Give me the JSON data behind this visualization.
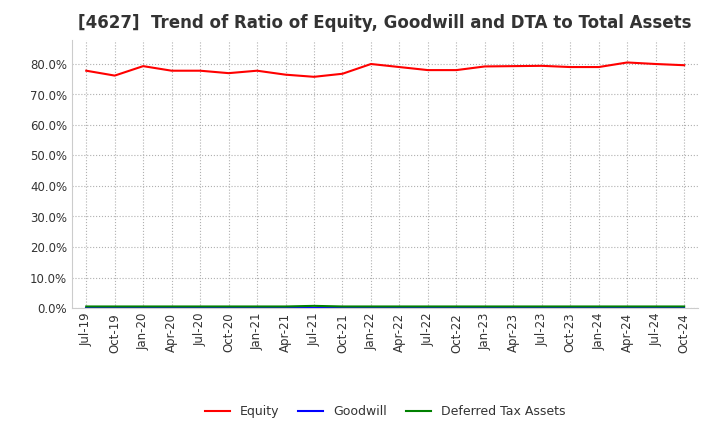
{
  "title": "[4627]  Trend of Ratio of Equity, Goodwill and DTA to Total Assets",
  "x_labels": [
    "Jul-19",
    "Oct-19",
    "Jan-20",
    "Apr-20",
    "Jul-20",
    "Oct-20",
    "Jan-21",
    "Apr-21",
    "Jul-21",
    "Oct-21",
    "Jan-22",
    "Apr-22",
    "Jul-22",
    "Oct-22",
    "Jan-23",
    "Apr-23",
    "Jul-23",
    "Oct-23",
    "Jan-24",
    "Apr-24",
    "Jul-24",
    "Oct-24"
  ],
  "equity": [
    0.778,
    0.762,
    0.793,
    0.778,
    0.778,
    0.77,
    0.778,
    0.765,
    0.758,
    0.768,
    0.8,
    0.79,
    0.78,
    0.78,
    0.792,
    0.793,
    0.794,
    0.79,
    0.79,
    0.805,
    0.8,
    0.796
  ],
  "goodwill": [
    0.0,
    0.0,
    0.0,
    0.0,
    0.0,
    0.0,
    0.0,
    0.0,
    0.0,
    0.0,
    0.0,
    0.0,
    0.0,
    0.0,
    0.0,
    0.0,
    0.0,
    0.0,
    0.0,
    0.0,
    0.0,
    0.0
  ],
  "dta": [
    0.005,
    0.005,
    0.005,
    0.005,
    0.005,
    0.005,
    0.005,
    0.005,
    0.007,
    0.005,
    0.005,
    0.005,
    0.005,
    0.005,
    0.005,
    0.005,
    0.005,
    0.005,
    0.005,
    0.005,
    0.005,
    0.005
  ],
  "equity_color": "#ff0000",
  "goodwill_color": "#0000ff",
  "dta_color": "#008000",
  "background_color": "#ffffff",
  "plot_bg_color": "#ffffff",
  "grid_color": "#b0b0b0",
  "ylim": [
    0.0,
    0.88
  ],
  "yticks": [
    0.0,
    0.1,
    0.2,
    0.3,
    0.4,
    0.5,
    0.6,
    0.7,
    0.8
  ],
  "title_fontsize": 12,
  "tick_fontsize": 8.5,
  "legend_labels": [
    "Equity",
    "Goodwill",
    "Deferred Tax Assets"
  ]
}
